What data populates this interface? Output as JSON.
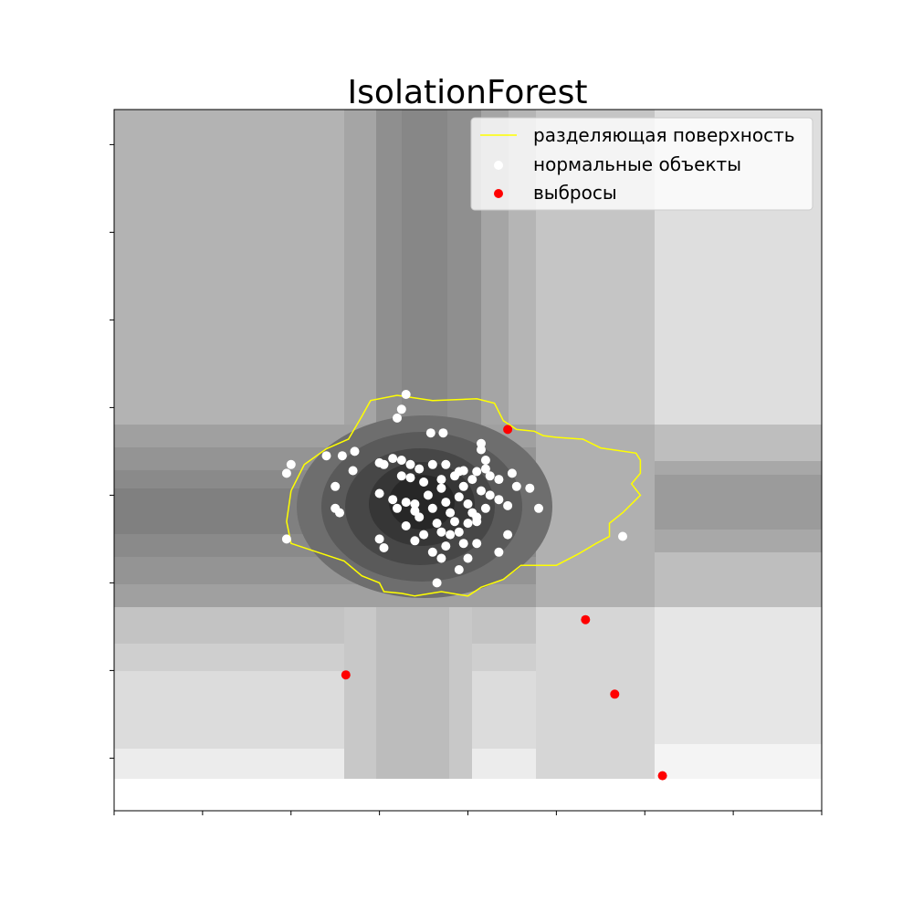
{
  "chart_data": {
    "type": "scatter",
    "title": "IsolationForest",
    "xlabel": "",
    "ylabel": "",
    "xlim": [
      -4,
      4
    ],
    "ylim": [
      -3.4,
      4.6
    ],
    "x_ticks": [
      -4,
      -3,
      -2,
      -1,
      0,
      1,
      2,
      3,
      4
    ],
    "y_ticks": [
      -2.8,
      -1.8,
      -0.8,
      0.2,
      1.2,
      2.2,
      3.2,
      4.2,
      5.2
    ],
    "tick_labels_visible": false,
    "grid": false,
    "legend_position": "top-right",
    "background": "grayscale anomaly-score contour map (darker = more normal)",
    "decision_boundary": {
      "name": "разделяющая поверхность",
      "color": "#ffff00",
      "points": [
        [
          -2.0,
          0.25
        ],
        [
          -1.85,
          0.55
        ],
        [
          -1.6,
          0.73
        ],
        [
          -1.35,
          0.84
        ],
        [
          -1.2,
          1.1
        ],
        [
          -1.1,
          1.28
        ],
        [
          -0.8,
          1.34
        ],
        [
          -0.4,
          1.28
        ],
        [
          0.1,
          1.3
        ],
        [
          0.3,
          1.25
        ],
        [
          0.4,
          1.05
        ],
        [
          0.55,
          0.95
        ],
        [
          0.75,
          0.93
        ],
        [
          0.85,
          0.88
        ],
        [
          1.0,
          0.86
        ],
        [
          1.3,
          0.84
        ],
        [
          1.5,
          0.74
        ],
        [
          1.9,
          0.68
        ],
        [
          1.95,
          0.6
        ],
        [
          1.95,
          0.45
        ],
        [
          1.85,
          0.33
        ],
        [
          1.95,
          0.2
        ],
        [
          1.9,
          0.15
        ],
        [
          1.75,
          0.0
        ],
        [
          1.6,
          -0.12
        ],
        [
          1.6,
          -0.27
        ],
        [
          1.45,
          -0.35
        ],
        [
          1.25,
          -0.47
        ],
        [
          1.0,
          -0.6
        ],
        [
          0.8,
          -0.6
        ],
        [
          0.6,
          -0.6
        ],
        [
          0.4,
          -0.76
        ],
        [
          0.15,
          -0.85
        ],
        [
          0.0,
          -0.95
        ],
        [
          -0.3,
          -0.9
        ],
        [
          -0.6,
          -0.95
        ],
        [
          -0.75,
          -0.92
        ],
        [
          -0.95,
          -0.9
        ],
        [
          -1.0,
          -0.8
        ],
        [
          -1.2,
          -0.72
        ],
        [
          -1.4,
          -0.55
        ],
        [
          -1.7,
          -0.45
        ],
        [
          -2.0,
          -0.35
        ],
        [
          -2.05,
          -0.1
        ],
        [
          -2.0,
          0.25
        ]
      ]
    },
    "series": [
      {
        "name": "нормальные объекты",
        "color": "#ffffff",
        "points": [
          [
            -0.7,
            1.35
          ],
          [
            -0.75,
            1.18
          ],
          [
            -0.8,
            1.08
          ],
          [
            -0.42,
            0.91
          ],
          [
            -0.28,
            0.91
          ],
          [
            0.15,
            0.79
          ],
          [
            0.15,
            0.72
          ],
          [
            -0.95,
            0.55
          ],
          [
            -1.0,
            0.57
          ],
          [
            -0.85,
            0.62
          ],
          [
            -0.75,
            0.6
          ],
          [
            -0.65,
            0.55
          ],
          [
            -0.55,
            0.5
          ],
          [
            -0.4,
            0.55
          ],
          [
            -0.25,
            0.55
          ],
          [
            -0.1,
            0.47
          ],
          [
            0.1,
            0.47
          ],
          [
            0.2,
            0.6
          ],
          [
            -0.05,
            0.48
          ],
          [
            -0.75,
            0.42
          ],
          [
            -0.65,
            0.4
          ],
          [
            -0.5,
            0.35
          ],
          [
            -0.3,
            0.38
          ],
          [
            -0.15,
            0.42
          ],
          [
            0.05,
            0.38
          ],
          [
            0.25,
            0.42
          ],
          [
            0.35,
            0.38
          ],
          [
            -1.0,
            0.22
          ],
          [
            -0.85,
            0.15
          ],
          [
            -0.7,
            0.12
          ],
          [
            -0.6,
            0.1
          ],
          [
            -0.45,
            0.2
          ],
          [
            -0.3,
            0.28
          ],
          [
            -0.25,
            0.12
          ],
          [
            -0.1,
            0.18
          ],
          [
            0.0,
            0.1
          ],
          [
            0.15,
            0.25
          ],
          [
            0.25,
            0.2
          ],
          [
            0.35,
            0.15
          ],
          [
            -0.8,
            0.05
          ],
          [
            -0.6,
            0.02
          ],
          [
            -0.4,
            0.05
          ],
          [
            -0.2,
            0.0
          ],
          [
            0.05,
            0.0
          ],
          [
            0.2,
            0.05
          ],
          [
            -0.55,
            -0.05
          ],
          [
            -0.35,
            -0.12
          ],
          [
            -0.15,
            -0.1
          ],
          [
            0.0,
            -0.12
          ],
          [
            0.1,
            -0.05
          ],
          [
            -0.7,
            -0.15
          ],
          [
            -0.5,
            -0.25
          ],
          [
            -0.3,
            -0.22
          ],
          [
            -0.1,
            -0.22
          ],
          [
            0.1,
            -0.35
          ],
          [
            -1.0,
            -0.3
          ],
          [
            -0.95,
            -0.4
          ],
          [
            -0.6,
            -0.32
          ],
          [
            -0.25,
            -0.38
          ],
          [
            -0.05,
            -0.35
          ],
          [
            -0.4,
            -0.45
          ],
          [
            -0.3,
            -0.52
          ],
          [
            0.0,
            -0.52
          ],
          [
            -0.35,
            -0.8
          ],
          [
            -0.1,
            -0.65
          ],
          [
            0.35,
            -0.45
          ],
          [
            -1.3,
            0.48
          ],
          [
            -1.5,
            0.3
          ],
          [
            -1.5,
            0.05
          ],
          [
            -1.45,
            0.0
          ],
          [
            -1.28,
            0.7
          ],
          [
            -1.42,
            0.65
          ],
          [
            -2.0,
            0.55
          ],
          [
            -2.05,
            0.45
          ],
          [
            -1.6,
            0.65
          ],
          [
            -2.05,
            -0.3
          ],
          [
            0.55,
            0.3
          ],
          [
            0.2,
            0.5
          ],
          [
            0.5,
            0.45
          ],
          [
            0.7,
            0.28
          ],
          [
            0.45,
            0.08
          ],
          [
            0.1,
            -0.1
          ],
          [
            -0.2,
            -0.25
          ],
          [
            0.8,
            0.05
          ],
          [
            -0.05,
            0.3
          ],
          [
            1.75,
            -0.27
          ],
          [
            0.45,
            -0.25
          ]
        ]
      },
      {
        "name": "выбросы",
        "color": "#ff0000",
        "points": [
          [
            0.45,
            0.95
          ],
          [
            1.33,
            -1.22
          ],
          [
            -1.38,
            -1.85
          ],
          [
            1.66,
            -2.07
          ],
          [
            2.2,
            -3.0
          ]
        ]
      }
    ]
  }
}
